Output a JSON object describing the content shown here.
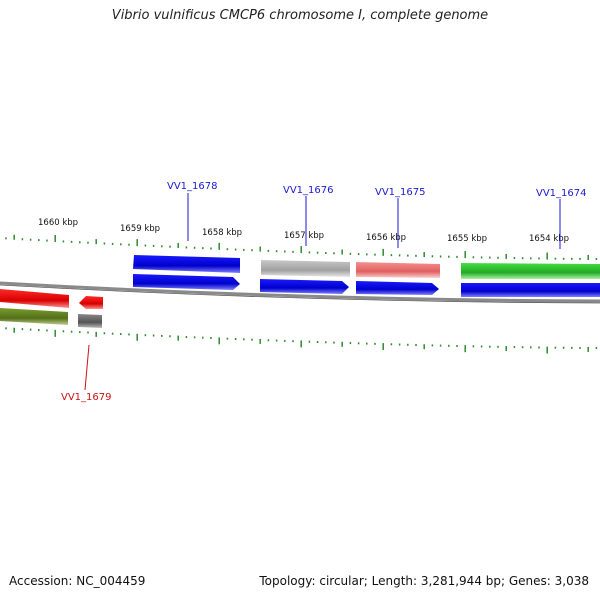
{
  "title": "Vibrio vulnificus CMCP6 chromosome I, complete genome",
  "footer": {
    "accession": "Accession: NC_004459",
    "summary": "Topology: circular; Length: 3,281,944 bp; Genes: 3,038"
  },
  "scale_labels": [
    "1660 kbp",
    "1659 kbp",
    "1658 kbp",
    "1657 kbp",
    "1656 kbp",
    "1655 kbp",
    "1654 kbp"
  ],
  "gene_labels": [
    {
      "text": "VV1_1678",
      "color": "#1a1ad0"
    },
    {
      "text": "VV1_1676",
      "color": "#1a1ad0"
    },
    {
      "text": "VV1_1675",
      "color": "#1a1ad0"
    },
    {
      "text": "VV1_1674",
      "color": "#1a1ad0"
    },
    {
      "text": "VV1_1679",
      "color": "#cc1111"
    }
  ],
  "colors": {
    "backbone": "#8a8a8a",
    "tick": "#2e8a2e",
    "blue": "#1010e0",
    "red": "#ee1111",
    "green": "#33cc33",
    "olive": "#6a8a20",
    "gray": "#aaaaaa",
    "pink": "#ee7777",
    "darkgray": "#666666"
  }
}
